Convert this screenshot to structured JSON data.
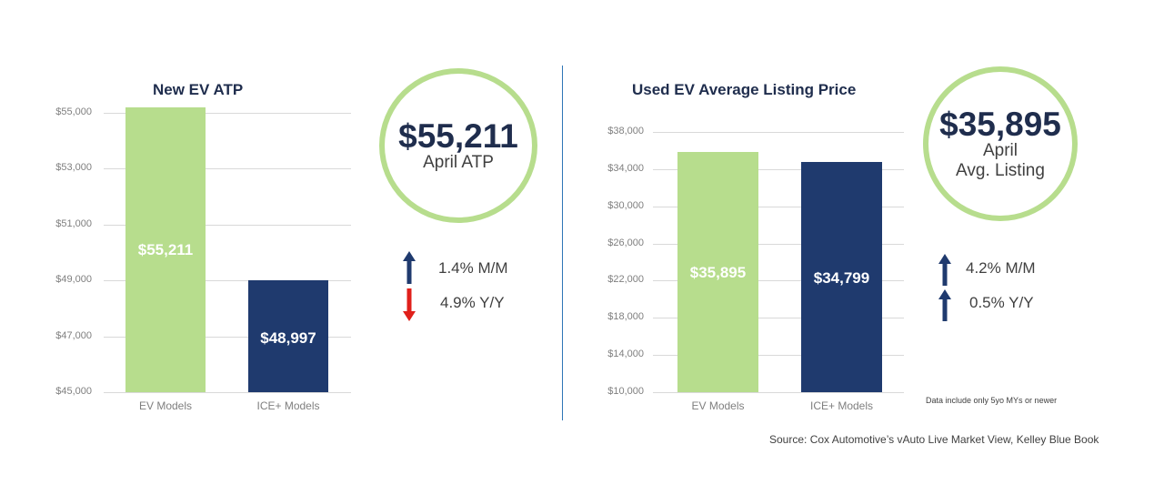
{
  "colors": {
    "ev_bar": "#b7dd8d",
    "ice_bar": "#1f3a6e",
    "circle_border": "#b7dd8d",
    "arrow_up": "#1f3a6e",
    "arrow_down": "#e0201b",
    "divider": "#2e75b6"
  },
  "left_panel": {
    "circle": {
      "value": "$55,211",
      "label": "April ATP"
    },
    "changes": [
      {
        "direction": "up",
        "icon": "arrow-up-icon",
        "text": "1.4% M/M"
      },
      {
        "direction": "down",
        "icon": "arrow-down-icon",
        "text": "4.9% Y/Y"
      }
    ]
  },
  "right_panel": {
    "circle": {
      "value": "$35,895",
      "label_line1": "April",
      "label_line2": "Avg. Listing"
    },
    "changes": [
      {
        "direction": "up",
        "icon": "arrow-up-icon",
        "text": "4.2% M/M"
      },
      {
        "direction": "up",
        "icon": "arrow-up-icon",
        "text": "0.5% Y/Y"
      }
    ],
    "note": "Data include only 5yo MYs or newer"
  },
  "source": "Source: Cox Automotive’s vAuto Live Market View, Kelley Blue Book",
  "chart_data": [
    {
      "type": "bar",
      "title": "New EV ATP",
      "categories": [
        "EV Models",
        "ICE+ Models"
      ],
      "values": [
        55211,
        48997
      ],
      "data_labels": [
        "$55,211",
        "$48,997"
      ],
      "ylim": [
        45000,
        55000
      ],
      "yticks": [
        45000,
        47000,
        49000,
        51000,
        53000,
        55000
      ],
      "ytick_labels": [
        "$45,000",
        "$47,000",
        "$49,000",
        "$51,000",
        "$53,000",
        "$55,000"
      ],
      "grid": true
    },
    {
      "type": "bar",
      "title": "Used EV Average Listing Price",
      "categories": [
        "EV Models",
        "ICE+ Models"
      ],
      "values": [
        35895,
        34799
      ],
      "data_labels": [
        "$35,895",
        "$34,799"
      ],
      "ylim": [
        10000,
        38000
      ],
      "yticks": [
        10000,
        14000,
        18000,
        22000,
        26000,
        30000,
        34000,
        38000
      ],
      "ytick_labels": [
        "$10,000",
        "$14,000",
        "$18,000",
        "$22,000",
        "$26,000",
        "$30,000",
        "$34,000",
        "$38,000"
      ],
      "grid": true
    }
  ]
}
